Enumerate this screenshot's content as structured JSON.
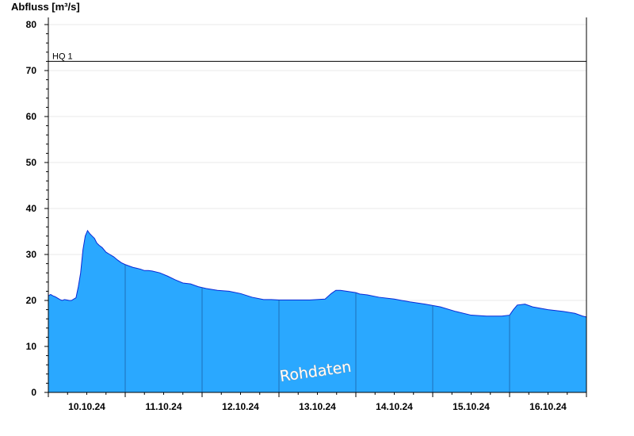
{
  "chart_data": {
    "type": "area",
    "ylabel": "Abfluss [m³/s]",
    "ylim": [
      0,
      82
    ],
    "yticks": [
      "0",
      "10",
      "20",
      "30",
      "40",
      "50",
      "60",
      "70",
      "80"
    ],
    "ytick_values": [
      0,
      10,
      20,
      30,
      40,
      50,
      60,
      70,
      80
    ],
    "xlim_days": [
      0,
      7
    ],
    "xticks": [
      "10.10.24",
      "11.10.24",
      "12.10.24",
      "13.10.24",
      "14.10.24",
      "15.10.24",
      "16.10.24"
    ],
    "grid": true,
    "reference_line": {
      "label": "HQ 1",
      "value": 72
    },
    "watermark": "Rohdaten",
    "colors": {
      "fill": "#2aa8ff",
      "line": "#0a28d6",
      "reference": "#000000",
      "grid": "#e8e8e8"
    },
    "series": [
      {
        "x": [
          0.0,
          0.03,
          0.06,
          0.09,
          0.12,
          0.15,
          0.18,
          0.21,
          0.24,
          0.27,
          0.3,
          0.33,
          0.36,
          0.39,
          0.42,
          0.45,
          0.48,
          0.51,
          0.54,
          0.57,
          0.6,
          0.63,
          0.66,
          0.7,
          0.75,
          0.8,
          0.85,
          0.9,
          0.95,
          1.0,
          1.05,
          1.1,
          1.15,
          1.2,
          1.25,
          1.3,
          1.35,
          1.45,
          1.55,
          1.65,
          1.75,
          1.85,
          1.95,
          2.05,
          2.2,
          2.35,
          2.5,
          2.65,
          2.8,
          2.9,
          3.0,
          3.2,
          3.4,
          3.6,
          3.68,
          3.74,
          3.8,
          4.0,
          4.05,
          4.15,
          4.3,
          4.5,
          4.7,
          4.9,
          5.1,
          5.3,
          5.5,
          5.7,
          5.9,
          6.0,
          6.05,
          6.1,
          6.2,
          6.3,
          6.5,
          6.7,
          6.85,
          6.95,
          7.0
        ],
        "values": [
          21.0,
          21.3,
          21.0,
          20.8,
          20.5,
          20.2,
          20.0,
          20.2,
          20.1,
          20.0,
          20.0,
          20.3,
          20.6,
          23.0,
          26.0,
          31.0,
          34.0,
          35.2,
          34.5,
          34.0,
          33.5,
          32.5,
          32.0,
          31.5,
          30.5,
          30.0,
          29.5,
          28.8,
          28.2,
          27.8,
          27.5,
          27.2,
          27.0,
          26.8,
          26.5,
          26.5,
          26.4,
          26.0,
          25.3,
          24.5,
          23.8,
          23.6,
          23.0,
          22.6,
          22.2,
          22.0,
          21.5,
          20.7,
          20.2,
          20.2,
          20.1,
          20.1,
          20.1,
          20.3,
          21.5,
          22.2,
          22.2,
          21.7,
          21.4,
          21.2,
          20.7,
          20.3,
          19.7,
          19.2,
          18.6,
          17.6,
          16.8,
          16.6,
          16.6,
          16.8,
          18.0,
          19.0,
          19.2,
          18.6,
          18.0,
          17.6,
          17.2,
          16.6,
          16.4
        ]
      }
    ]
  }
}
